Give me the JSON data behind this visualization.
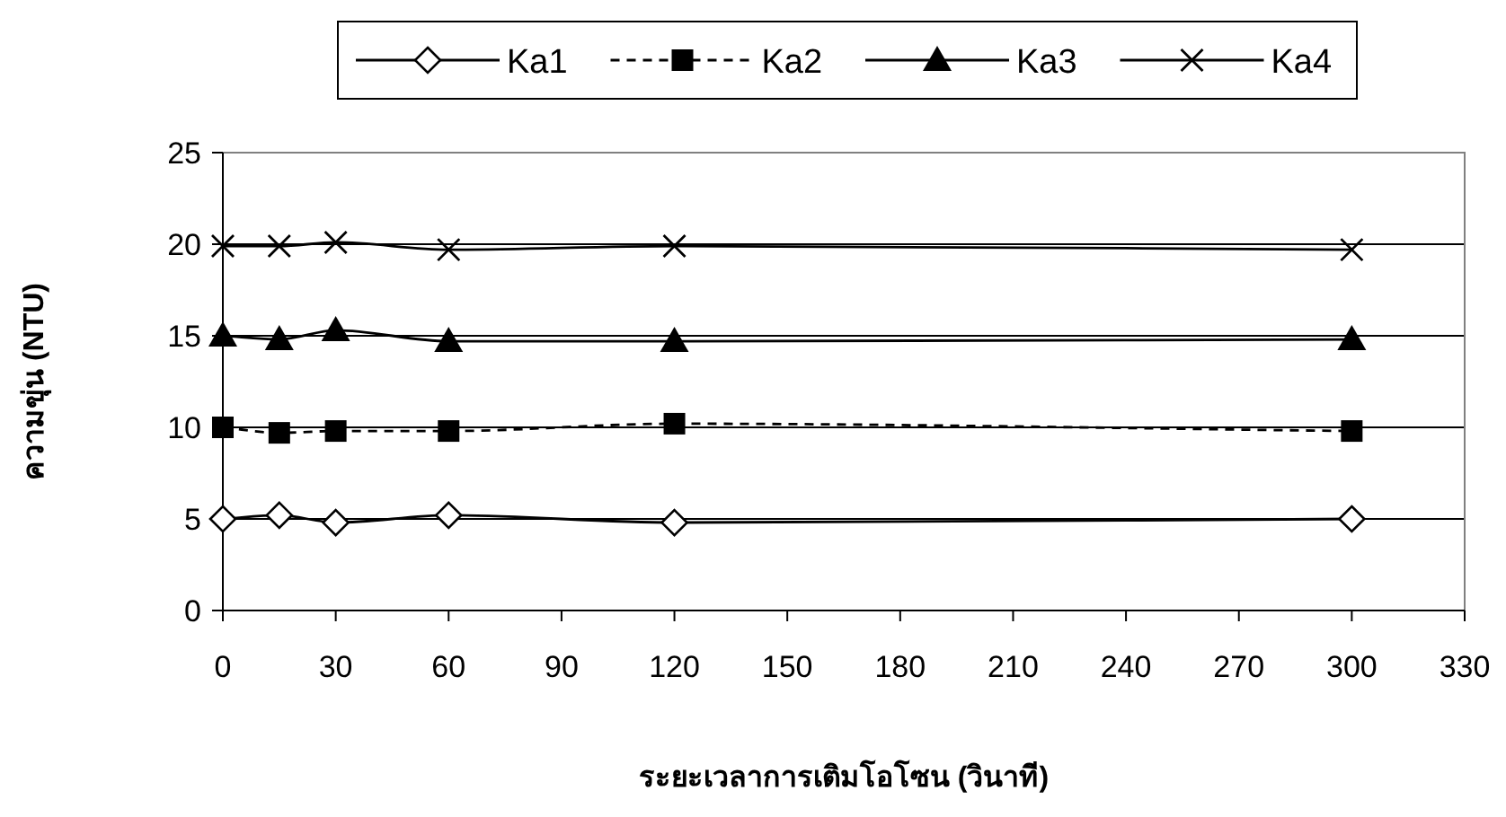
{
  "chart_data": {
    "type": "line",
    "xlabel": "ระยะเวลาการเติมโอโซน (วินาที)",
    "ylabel": "ความขุ่น (NTU)",
    "xlim": [
      0,
      330
    ],
    "xticks": [
      0,
      30,
      60,
      90,
      120,
      150,
      180,
      210,
      240,
      270,
      300,
      330
    ],
    "ylim": [
      0,
      25
    ],
    "yticks": [
      0,
      5,
      10,
      15,
      20,
      25
    ],
    "grid": "y",
    "legend": "top",
    "series": [
      {
        "name": "Ka1",
        "color": "#000000",
        "marker": "diamond",
        "line_style": "solid",
        "x": [
          0,
          15,
          30,
          60,
          120,
          300
        ],
        "values": [
          5.0,
          5.2,
          4.8,
          5.2,
          4.8,
          5.0
        ]
      },
      {
        "name": "Ka2",
        "color": "#000000",
        "marker": "square",
        "line_style": "dashed",
        "x": [
          0,
          15,
          30,
          60,
          120,
          300
        ],
        "values": [
          10.0,
          9.7,
          9.8,
          9.8,
          10.2,
          9.8
        ]
      },
      {
        "name": "Ka3",
        "color": "#000000",
        "marker": "triangle",
        "line_style": "solid",
        "x": [
          0,
          15,
          30,
          60,
          120,
          300
        ],
        "values": [
          15.0,
          14.8,
          15.3,
          14.7,
          14.7,
          14.8
        ]
      },
      {
        "name": "Ka4",
        "color": "#000000",
        "marker": "cross",
        "line_style": "solid",
        "x": [
          0,
          15,
          30,
          60,
          120,
          300
        ],
        "values": [
          19.9,
          19.9,
          20.1,
          19.7,
          19.9,
          19.7
        ]
      }
    ]
  }
}
